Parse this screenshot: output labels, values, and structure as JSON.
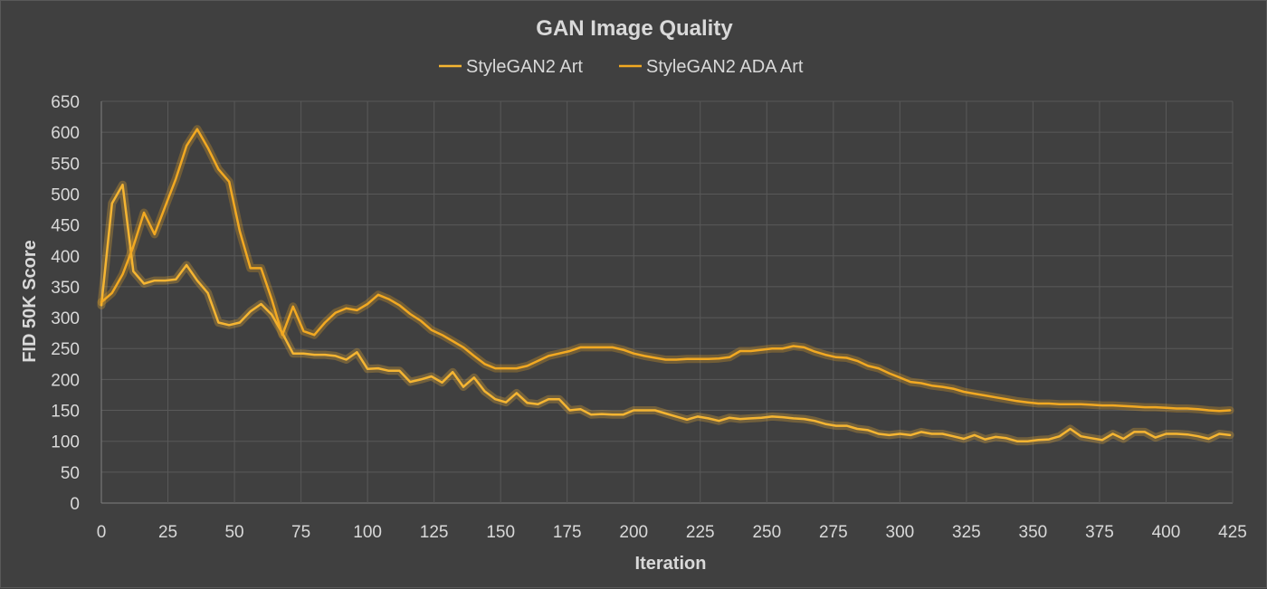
{
  "chart_data": {
    "type": "line",
    "title": "GAN Image Quality",
    "xlabel": "Iteration",
    "ylabel": "FID 50K Score",
    "xlim": [
      0,
      425
    ],
    "ylim": [
      0,
      650
    ],
    "x_ticks": [
      0,
      25,
      50,
      75,
      100,
      125,
      150,
      175,
      200,
      225,
      250,
      275,
      300,
      325,
      350,
      375,
      400,
      425
    ],
    "y_ticks": [
      0,
      50,
      100,
      150,
      200,
      250,
      300,
      350,
      400,
      450,
      500,
      550,
      600,
      650
    ],
    "grid": true,
    "legend_position": "top",
    "colors": {
      "background": "#404040",
      "series": [
        "#f5b532",
        "#f2a922"
      ]
    },
    "series": [
      {
        "name": "StyleGAN2 Art",
        "x": [
          0,
          4,
          8,
          12,
          16,
          20,
          24,
          28,
          32,
          36,
          40,
          44,
          48,
          52,
          56,
          60,
          64,
          68,
          72,
          76,
          80,
          84,
          88,
          92,
          96,
          100,
          104,
          108,
          112,
          116,
          120,
          124,
          128,
          132,
          136,
          140,
          144,
          148,
          152,
          156,
          160,
          164,
          168,
          172,
          176,
          180,
          184,
          188,
          192,
          196,
          200,
          204,
          208,
          212,
          216,
          220,
          224,
          228,
          232,
          236,
          240,
          244,
          248,
          252,
          256,
          260,
          264,
          268,
          272,
          276,
          280,
          284,
          288,
          292,
          296,
          300,
          304,
          308,
          312,
          316,
          320,
          324,
          328,
          332,
          336,
          340,
          344,
          348,
          352,
          356,
          360,
          364,
          368,
          372,
          376,
          380,
          384,
          388,
          392,
          396,
          400,
          404,
          408,
          412,
          416,
          420,
          424
        ],
        "values": [
          320,
          485,
          515,
          375,
          355,
          360,
          360,
          362,
          385,
          360,
          340,
          292,
          288,
          292,
          310,
          322,
          305,
          275,
          242,
          242,
          240,
          240,
          238,
          232,
          244,
          217,
          218,
          214,
          214,
          196,
          200,
          205,
          195,
          212,
          188,
          203,
          181,
          168,
          163,
          178,
          162,
          160,
          168,
          168,
          150,
          152,
          143,
          144,
          143,
          143,
          150,
          150,
          150,
          145,
          140,
          135,
          140,
          137,
          133,
          138,
          136,
          137,
          138,
          140,
          139,
          137,
          136,
          133,
          128,
          125,
          125,
          120,
          118,
          112,
          110,
          112,
          110,
          115,
          112,
          112,
          108,
          104,
          110,
          103,
          107,
          105,
          100,
          100,
          102,
          103,
          108,
          120,
          108,
          105,
          102,
          112,
          104,
          115,
          115,
          106,
          112,
          112,
          111,
          108,
          104,
          112,
          110
        ]
      },
      {
        "name": "StyleGAN2 ADA Art",
        "x": [
          0,
          4,
          8,
          12,
          16,
          20,
          24,
          28,
          32,
          36,
          40,
          44,
          48,
          52,
          56,
          60,
          64,
          68,
          72,
          76,
          80,
          84,
          88,
          92,
          96,
          100,
          104,
          108,
          112,
          116,
          120,
          124,
          128,
          132,
          136,
          140,
          144,
          148,
          152,
          156,
          160,
          164,
          168,
          172,
          176,
          180,
          184,
          188,
          192,
          196,
          200,
          204,
          208,
          212,
          216,
          220,
          224,
          228,
          232,
          236,
          240,
          244,
          248,
          252,
          256,
          260,
          264,
          268,
          272,
          276,
          280,
          284,
          288,
          292,
          296,
          300,
          304,
          308,
          312,
          316,
          320,
          324,
          328,
          332,
          336,
          340,
          344,
          348,
          352,
          356,
          360,
          364,
          368,
          372,
          376,
          380,
          384,
          388,
          392,
          396,
          400,
          404,
          408,
          412,
          416,
          420,
          424
        ],
        "values": [
          325,
          340,
          370,
          415,
          470,
          435,
          480,
          525,
          578,
          605,
          575,
          540,
          520,
          440,
          380,
          380,
          330,
          272,
          318,
          278,
          272,
          292,
          308,
          315,
          312,
          322,
          337,
          330,
          320,
          306,
          295,
          280,
          272,
          262,
          252,
          238,
          225,
          218,
          218,
          218,
          222,
          230,
          238,
          242,
          246,
          252,
          252,
          252,
          252,
          248,
          242,
          238,
          235,
          232,
          232,
          233,
          233,
          233,
          234,
          236,
          246,
          246,
          248,
          250,
          250,
          254,
          252,
          245,
          240,
          236,
          235,
          230,
          222,
          218,
          210,
          203,
          196,
          194,
          190,
          188,
          185,
          180,
          177,
          174,
          171,
          168,
          165,
          163,
          161,
          161,
          160,
          160,
          160,
          159,
          158,
          158,
          157,
          156,
          155,
          155,
          154,
          153,
          153,
          152,
          150,
          149,
          150
        ]
      }
    ]
  }
}
